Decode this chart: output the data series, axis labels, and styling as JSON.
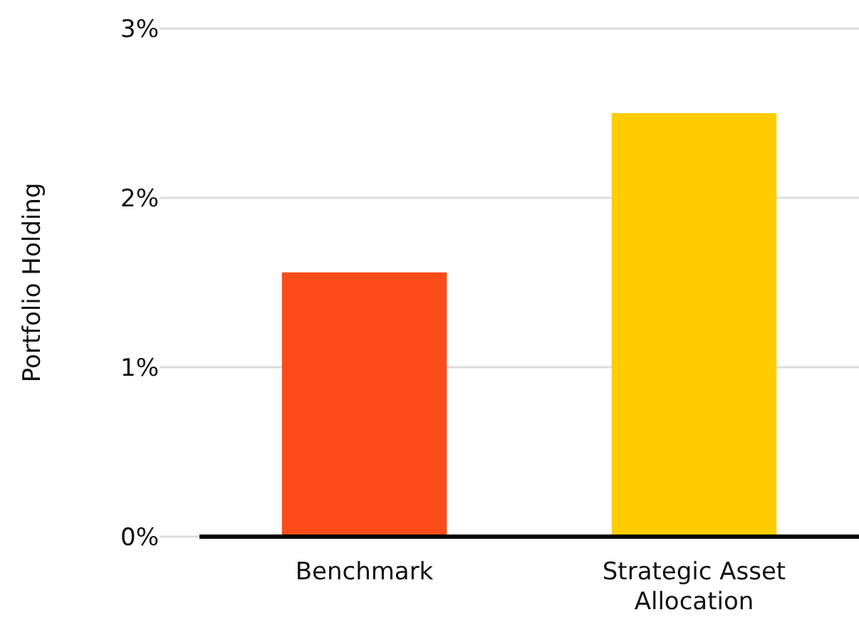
{
  "chart_data": {
    "type": "bar",
    "ylabel": "Portfolio Holding",
    "categories": [
      "Benchmark",
      "Strategic Asset Allocation"
    ],
    "values": [
      1.56,
      2.5
    ],
    "colors": [
      "#fc4c1a",
      "#ffcc00"
    ],
    "ylim": [
      0,
      3
    ],
    "yticks": [
      {
        "value": 0,
        "label": "0%"
      },
      {
        "value": 1,
        "label": "1%"
      },
      {
        "value": 2,
        "label": "2%"
      },
      {
        "value": 3,
        "label": "3%"
      }
    ],
    "grid": "y"
  }
}
